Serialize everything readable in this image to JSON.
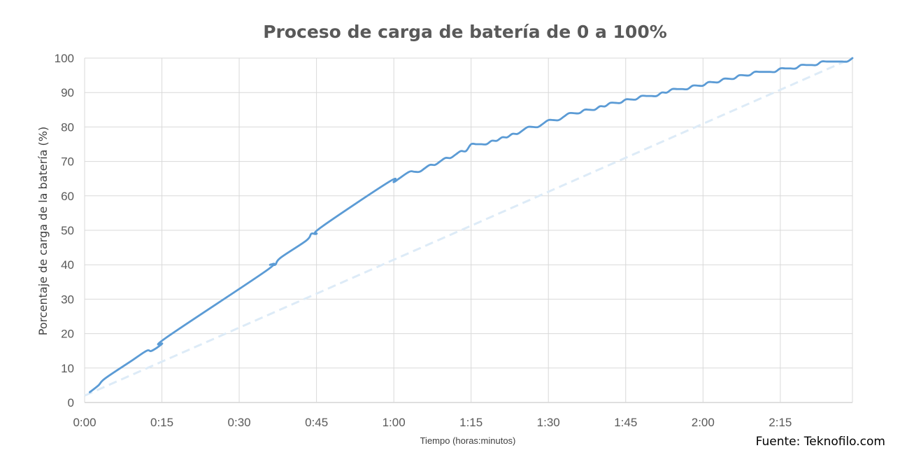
{
  "chart_data": {
    "type": "line",
    "title": "Proceso de carga de batería de 0 a 100%",
    "xlabel": "Tiempo (horas:minutos)",
    "ylabel": "Porcentaje de carga de la batería (%)",
    "source": "Fuente: Teknofilo.com",
    "x_unit": "minutes",
    "xlim": [
      0,
      149
    ],
    "ylim": [
      0,
      100
    ],
    "x_ticks": [
      0,
      15,
      30,
      45,
      60,
      75,
      90,
      105,
      120,
      135
    ],
    "x_tick_labels": [
      "0:00",
      "0:15",
      "0:30",
      "0:45",
      "1:00",
      "1:15",
      "1:30",
      "1:45",
      "2:00",
      "2:15"
    ],
    "y_ticks": [
      0,
      10,
      20,
      30,
      40,
      50,
      60,
      70,
      80,
      90,
      100
    ],
    "grid": true,
    "series": [
      {
        "color": "#5b9bd5",
        "style": "solid",
        "x": [
          1,
          2.7,
          4,
          9,
          12,
          13,
          15,
          16,
          35,
          36,
          37,
          38,
          43,
          44,
          45,
          46,
          59,
          60,
          61,
          63,
          64,
          65,
          66,
          67,
          68,
          69,
          70,
          71,
          72,
          73,
          74,
          75,
          76,
          77,
          78,
          79,
          80,
          81,
          82,
          83,
          84,
          85,
          86,
          87,
          88,
          89,
          90,
          91,
          92,
          93,
          94,
          95,
          96,
          97,
          98,
          99,
          100,
          101,
          102,
          103,
          104,
          105,
          106,
          107,
          108,
          109,
          110,
          111,
          112,
          113,
          114,
          115,
          116,
          117,
          118,
          119,
          120,
          121,
          122,
          123,
          124,
          125,
          126,
          127,
          128,
          129,
          130,
          131,
          132,
          133,
          134,
          135,
          136,
          137,
          138,
          139,
          140,
          141,
          142,
          143,
          144,
          145,
          146,
          147,
          148,
          149
        ],
        "y": [
          3,
          5,
          7,
          12,
          15,
          15,
          17,
          19,
          38,
          40,
          40,
          42,
          47,
          49,
          49,
          51,
          64,
          64,
          65,
          67,
          67,
          67,
          68,
          69,
          69,
          70,
          71,
          71,
          72,
          73,
          73,
          75,
          75,
          75,
          75,
          76,
          76,
          77,
          77,
          78,
          78,
          79,
          80,
          80,
          80,
          81,
          82,
          82,
          82,
          83,
          84,
          84,
          84,
          85,
          85,
          85,
          86,
          86,
          87,
          87,
          87,
          88,
          88,
          88,
          89,
          89,
          89,
          89,
          90,
          90,
          91,
          91,
          91,
          91,
          92,
          92,
          92,
          93,
          93,
          93,
          94,
          94,
          94,
          95,
          95,
          95,
          96,
          96,
          96,
          96,
          96,
          97,
          97,
          97,
          97,
          98,
          98,
          98,
          98,
          99,
          99,
          99,
          99,
          99,
          99,
          100
        ]
      },
      {
        "color": "#ddebf7",
        "style": "dashed",
        "x": [
          0,
          149
        ],
        "y": [
          2,
          100
        ]
      }
    ]
  }
}
